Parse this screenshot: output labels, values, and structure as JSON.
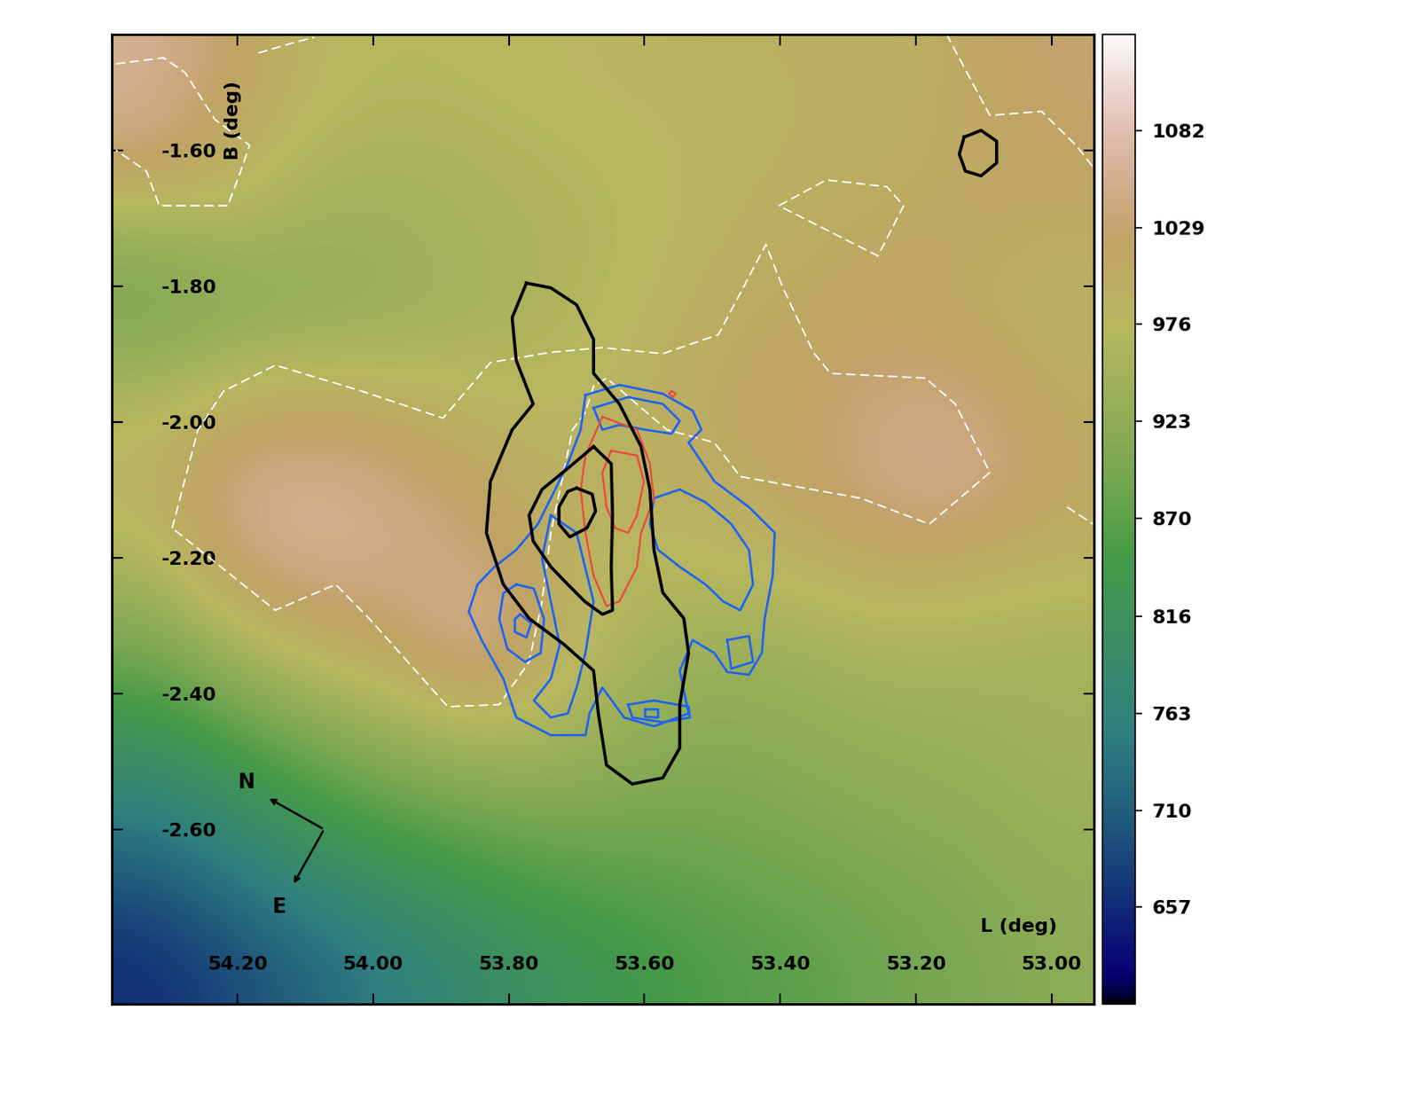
{
  "chart_data": {
    "type": "heatmap",
    "xlabel": "L (deg)",
    "ylabel": "B (deg)",
    "xlim": [
      54.385,
      52.937
    ],
    "ylim": [
      -2.857,
      -1.428
    ],
    "xticks": [
      {
        "value": 54.2,
        "label": "54.20"
      },
      {
        "value": 54.0,
        "label": "54.00"
      },
      {
        "value": 53.8,
        "label": "53.80"
      },
      {
        "value": 53.6,
        "label": "53.60"
      },
      {
        "value": 53.4,
        "label": "53.40"
      },
      {
        "value": 53.2,
        "label": "53.20"
      },
      {
        "value": 53.0,
        "label": "53.00"
      }
    ],
    "yticks": [
      {
        "value": -1.6,
        "label": "-1.60"
      },
      {
        "value": -1.8,
        "label": "-1.80"
      },
      {
        "value": -2.0,
        "label": "-2.00"
      },
      {
        "value": -2.2,
        "label": "-2.20"
      },
      {
        "value": -2.4,
        "label": "-2.40"
      },
      {
        "value": -2.6,
        "label": "-2.60"
      }
    ],
    "cells": [
      [
        1060,
        1020,
        980,
        970,
        975,
        980,
        985,
        990,
        990,
        990,
        1010,
        1030
      ],
      [
        1040,
        1000,
        960,
        955,
        960,
        970,
        975,
        985,
        990,
        995,
        1010,
        1020
      ],
      [
        930,
        950,
        940,
        945,
        955,
        960,
        975,
        990,
        1000,
        1010,
        1010,
        1000
      ],
      [
        900,
        920,
        930,
        940,
        950,
        965,
        980,
        1000,
        1010,
        1020,
        1000,
        990
      ],
      [
        960,
        990,
        1000,
        990,
        980,
        975,
        990,
        1010,
        1020,
        1040,
        1040,
        1000
      ],
      [
        990,
        1050,
        1060,
        1040,
        1010,
        990,
        990,
        1000,
        1020,
        1050,
        1060,
        1010
      ],
      [
        960,
        1040,
        1060,
        1050,
        1040,
        990,
        970,
        980,
        990,
        1010,
        1000,
        990
      ],
      [
        900,
        960,
        1000,
        1020,
        1070,
        990,
        950,
        940,
        950,
        960,
        960,
        950
      ],
      [
        830,
        880,
        920,
        950,
        980,
        960,
        930,
        920,
        930,
        940,
        940,
        950
      ],
      [
        760,
        800,
        850,
        880,
        900,
        910,
        900,
        900,
        910,
        920,
        930,
        940
      ],
      [
        700,
        740,
        780,
        810,
        840,
        860,
        870,
        880,
        890,
        900,
        910,
        930
      ],
      [
        660,
        690,
        720,
        760,
        790,
        820,
        840,
        860,
        870,
        890,
        900,
        920
      ]
    ],
    "colorbar": {
      "range": [
        604,
        1135
      ],
      "ticks": [
        1082,
        1029,
        976,
        923,
        870,
        816,
        763,
        710,
        657
      ]
    },
    "contours": [
      {
        "color": "#ffffff",
        "line_style": "dashed",
        "lines": [
          {
            "x": [
              54.379,
              54.309,
              54.277,
              54.233,
              54.182,
              54.195,
              54.214,
              54.315,
              54.334,
              54.379
            ],
            "y": [
              -1.472,
              -1.463,
              -1.485,
              -1.554,
              -1.592,
              -1.63,
              -1.681,
              -1.681,
              -1.63,
              -1.599
            ]
          },
          {
            "x": [
              54.169,
              54.125,
              54.087
            ],
            "y": [
              -1.456,
              -1.443,
              -1.433
            ]
          },
          {
            "x": [
              54.296,
              54.258,
              54.22,
              54.144,
              54.017,
              53.897,
              53.827,
              53.738,
              53.662,
              53.573,
              53.491,
              53.421,
              53.396,
              53.351,
              53.326,
              53.186,
              53.142,
              53.091,
              53.18,
              53.281,
              53.459,
              53.497,
              53.567,
              53.656,
              53.675,
              53.687,
              53.706,
              53.738,
              53.751,
              53.77,
              53.814,
              53.89,
              54.005,
              54.055,
              54.144,
              54.296
            ],
            "y": [
              -2.156,
              -2.011,
              -1.954,
              -1.916,
              -1.954,
              -1.994,
              -1.912,
              -1.897,
              -1.89,
              -1.899,
              -1.871,
              -1.738,
              -1.802,
              -1.897,
              -1.928,
              -1.935,
              -1.973,
              -2.074,
              -2.15,
              -2.112,
              -2.08,
              -2.03,
              -2.011,
              -1.935,
              -1.947,
              -1.985,
              -2.011,
              -2.163,
              -2.264,
              -2.353,
              -2.416,
              -2.419,
              -2.29,
              -2.239,
              -2.277,
              -2.156
            ]
          },
          {
            "x": [
              53.402,
              53.332,
              53.243,
              53.218,
              53.256,
              53.402
            ],
            "y": [
              -1.681,
              -1.643,
              -1.653,
              -1.681,
              -1.755,
              -1.681
            ]
          },
          {
            "x": [
              53.155,
              53.091,
              53.015,
              52.964,
              52.939
            ],
            "y": [
              -1.428,
              -1.548,
              -1.542,
              -1.592,
              -1.624
            ]
          },
          {
            "x": [
              52.977,
              52.939
            ],
            "y": [
              -2.125,
              -2.15
            ]
          }
        ]
      },
      {
        "color": "#1f63f2",
        "line_style": "solid",
        "lines": [
          {
            "x": [
              53.687,
              53.637,
              53.573,
              53.529,
              53.516,
              53.535,
              53.497,
              53.446,
              53.408,
              53.411,
              53.423,
              53.427,
              53.446,
              53.478,
              53.497,
              53.529,
              53.548,
              53.535,
              53.586,
              53.63,
              53.662,
              53.681,
              53.687,
              53.738,
              53.789,
              53.808,
              53.84,
              53.859,
              53.846,
              53.821,
              53.789,
              53.757,
              53.738,
              53.713,
              53.694,
              53.687
            ],
            "y": [
              -1.96,
              -1.945,
              -1.958,
              -1.983,
              -2.011,
              -2.03,
              -2.087,
              -2.125,
              -2.163,
              -2.226,
              -2.29,
              -2.34,
              -2.372,
              -2.368,
              -2.34,
              -2.321,
              -2.366,
              -2.429,
              -2.448,
              -2.435,
              -2.391,
              -2.429,
              -2.461,
              -2.461,
              -2.435,
              -2.378,
              -2.321,
              -2.279,
              -2.239,
              -2.213,
              -2.188,
              -2.15,
              -2.112,
              -2.061,
              -2.011,
              -1.96
            ]
          },
          {
            "x": [
              53.789,
              53.763,
              53.748,
              53.753,
              53.776,
              53.802,
              53.814,
              53.808,
              53.789
            ],
            "y": [
              -2.239,
              -2.245,
              -2.29,
              -2.34,
              -2.353,
              -2.334,
              -2.29,
              -2.252,
              -2.239
            ]
          },
          {
            "x": [
              53.783,
              53.767,
              53.774,
              53.791,
              53.791,
              53.783
            ],
            "y": [
              -2.283,
              -2.296,
              -2.317,
              -2.309,
              -2.29,
              -2.283
            ]
          },
          {
            "x": [
              53.675,
              53.624,
              53.573,
              53.548,
              53.56,
              53.599,
              53.637,
              53.662,
              53.675
            ],
            "y": [
              -1.979,
              -1.963,
              -1.973,
              -1.998,
              -2.017,
              -2.011,
              -2.004,
              -2.011,
              -1.979
            ]
          },
          {
            "x": [
              53.586,
              53.548,
              53.51,
              53.472,
              53.446,
              53.44,
              53.459,
              53.484,
              53.51,
              53.548,
              53.58,
              53.592,
              53.586
            ],
            "y": [
              -2.112,
              -2.099,
              -2.118,
              -2.15,
              -2.188,
              -2.239,
              -2.277,
              -2.264,
              -2.239,
              -2.213,
              -2.188,
              -2.15,
              -2.112
            ]
          },
          {
            "x": [
              53.624,
              53.586,
              53.535,
              53.533,
              53.573,
              53.618,
              53.624
            ],
            "y": [
              -2.416,
              -2.41,
              -2.419,
              -2.435,
              -2.442,
              -2.435,
              -2.416
            ]
          },
          {
            "x": [
              53.599,
              53.58,
              53.58,
              53.599,
              53.599
            ],
            "y": [
              -2.423,
              -2.423,
              -2.435,
              -2.434,
              -2.423
            ]
          },
          {
            "x": [
              53.478,
              53.446,
              53.44,
              53.472,
              53.478
            ],
            "y": [
              -2.321,
              -2.315,
              -2.353,
              -2.363,
              -2.321
            ]
          },
          {
            "x": [
              53.738,
              53.7,
              53.675,
              53.687,
              53.7,
              53.713,
              53.738,
              53.763,
              53.738,
              53.725,
              53.738,
              53.751,
              53.738
            ],
            "y": [
              -2.137,
              -2.163,
              -2.264,
              -2.34,
              -2.391,
              -2.429,
              -2.435,
              -2.41,
              -2.378,
              -2.328,
              -2.264,
              -2.201,
              -2.137
            ]
          }
        ]
      },
      {
        "color": "#ec4a3c",
        "line_style": "solid",
        "lines": [
          {
            "x": [
              53.662,
              53.611,
              53.592,
              53.586,
              53.605,
              53.611,
              53.637,
              53.656,
              53.675,
              53.687,
              53.694,
              53.687,
              53.662
            ],
            "y": [
              -1.992,
              -2.011,
              -2.061,
              -2.112,
              -2.163,
              -2.213,
              -2.264,
              -2.271,
              -2.226,
              -2.163,
              -2.099,
              -2.049,
              -1.992
            ]
          },
          {
            "x": [
              53.649,
              53.611,
              53.601,
              53.611,
              53.624,
              53.643,
              53.656,
              53.662,
              53.649
            ],
            "y": [
              -2.042,
              -2.049,
              -2.087,
              -2.137,
              -2.163,
              -2.156,
              -2.125,
              -2.074,
              -2.042
            ]
          },
          {
            "x": [
              53.56,
              53.554,
              53.558,
              53.564,
              53.56
            ],
            "y": [
              -1.954,
              -1.958,
              -1.963,
              -1.958,
              -1.954
            ]
          }
        ]
      },
      {
        "color": "#000000",
        "line_style": "solid",
        "lines": [
          {
            "x": [
              53.774,
              53.738,
              53.7,
              53.675,
              53.675,
              53.637,
              53.605,
              53.592,
              53.586,
              53.573,
              53.542,
              53.535,
              53.548,
              53.548,
              53.573,
              53.618,
              53.656,
              53.668,
              53.675,
              53.719,
              53.77,
              53.808,
              53.833,
              53.827,
              53.795,
              53.764,
              53.789,
              53.795,
              53.774
            ],
            "y": [
              -1.795,
              -1.802,
              -1.827,
              -1.878,
              -1.928,
              -1.973,
              -2.036,
              -2.099,
              -2.188,
              -2.251,
              -2.289,
              -2.34,
              -2.416,
              -2.48,
              -2.524,
              -2.533,
              -2.505,
              -2.429,
              -2.366,
              -2.327,
              -2.289,
              -2.239,
              -2.163,
              -2.087,
              -2.011,
              -1.973,
              -1.909,
              -1.846,
              -1.795
            ]
          },
          {
            "x": [
              53.675,
              53.649,
              53.647,
              53.649,
              53.647,
              53.662,
              53.688,
              53.713,
              53.738,
              53.764,
              53.77,
              53.751,
              53.713,
              53.675
            ],
            "y": [
              -2.036,
              -2.061,
              -2.137,
              -2.213,
              -2.277,
              -2.283,
              -2.264,
              -2.239,
              -2.213,
              -2.175,
              -2.137,
              -2.099,
              -2.068,
              -2.036
            ]
          },
          {
            "x": [
              53.7,
              53.677,
              53.672,
              53.685,
              53.71,
              53.726,
              53.726,
              53.713,
              53.7
            ],
            "y": [
              -2.097,
              -2.106,
              -2.131,
              -2.156,
              -2.169,
              -2.15,
              -2.125,
              -2.102,
              -2.097
            ]
          },
          {
            "x": [
              53.129,
              53.104,
              53.081,
              53.081,
              53.104,
              53.127,
              53.136,
              53.129
            ],
            "y": [
              -1.58,
              -1.57,
              -1.586,
              -1.618,
              -1.637,
              -1.63,
              -1.605,
              -1.58
            ]
          }
        ]
      }
    ],
    "compass": {
      "north": "N",
      "east": "E"
    }
  }
}
